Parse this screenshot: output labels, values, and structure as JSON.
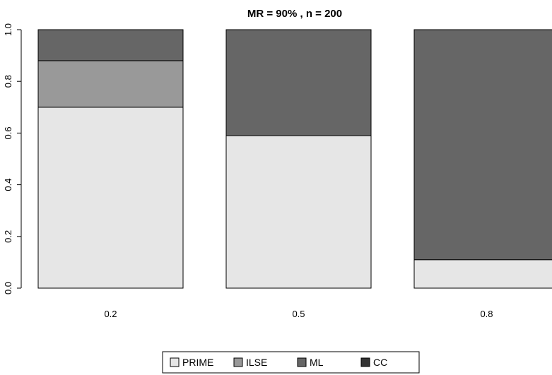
{
  "chart_data": {
    "type": "bar",
    "stacked": true,
    "proportional": true,
    "title": "MR = 90% ,  n = 200",
    "xlabel": "",
    "ylabel": "",
    "ylim": [
      0,
      1
    ],
    "yticks": [
      "0.0",
      "0.2",
      "0.4",
      "0.6",
      "0.8",
      "1.0"
    ],
    "categories": [
      "0.2",
      "0.5",
      "0.8"
    ],
    "series": [
      {
        "name": "PRIME",
        "color": "#e6e6e6",
        "values": [
          0.7,
          0.59,
          0.11
        ]
      },
      {
        "name": "ILSE",
        "color": "#999999",
        "values": [
          0.18,
          0.0,
          0.0
        ]
      },
      {
        "name": "ML",
        "color": "#666666",
        "values": [
          0.12,
          0.41,
          0.89
        ]
      },
      {
        "name": "CC",
        "color": "#333333",
        "values": [
          0.0,
          0.0,
          0.0
        ]
      }
    ],
    "grid": false,
    "legend_position": "bottom"
  }
}
